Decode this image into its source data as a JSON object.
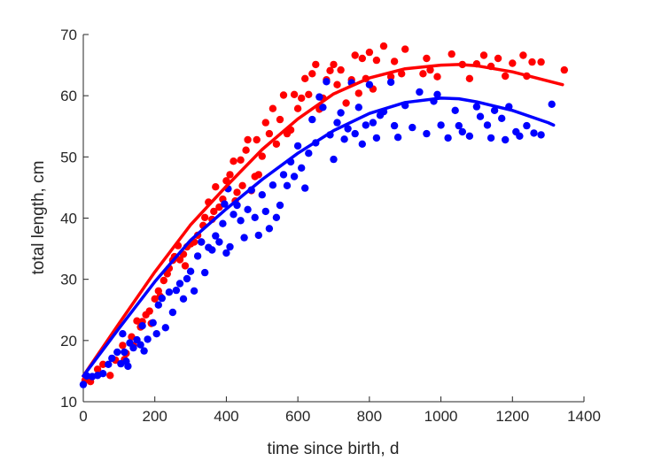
{
  "chart_data": {
    "type": "scatter",
    "title": "",
    "xlabel": "time since birth, d",
    "ylabel": "total length, cm",
    "xlim": [
      0,
      1400
    ],
    "ylim": [
      10,
      70
    ],
    "xticks": [
      0,
      200,
      400,
      600,
      800,
      1000,
      1200,
      1400
    ],
    "yticks": [
      10,
      20,
      30,
      40,
      50,
      60,
      70
    ],
    "xtick_labels": [
      "0",
      "200",
      "400",
      "600",
      "800",
      "1000",
      "1200",
      "1400"
    ],
    "ytick_labels": [
      "10",
      "20",
      "30",
      "40",
      "50",
      "60",
      "70"
    ],
    "grid": false,
    "legend": "none",
    "series": [
      {
        "color": "#ff0000",
        "points": [
          [
            5,
            13.5
          ],
          [
            20,
            13.3
          ],
          [
            40,
            15.3
          ],
          [
            55,
            16.1
          ],
          [
            75,
            14.3
          ],
          [
            90,
            16.8
          ],
          [
            110,
            19.2
          ],
          [
            115,
            16.9
          ],
          [
            120,
            17.9
          ],
          [
            135,
            20.6
          ],
          [
            140,
            19.2
          ],
          [
            150,
            23.2
          ],
          [
            160,
            22.2
          ],
          [
            165,
            23.1
          ],
          [
            175,
            24.2
          ],
          [
            185,
            24.8
          ],
          [
            190,
            22.8
          ],
          [
            200,
            26.8
          ],
          [
            210,
            28.1
          ],
          [
            215,
            27.2
          ],
          [
            225,
            29.8
          ],
          [
            235,
            30.9
          ],
          [
            240,
            31.8
          ],
          [
            250,
            33.1
          ],
          [
            255,
            33.7
          ],
          [
            265,
            35.5
          ],
          [
            270,
            33.2
          ],
          [
            280,
            34.1
          ],
          [
            285,
            32.2
          ],
          [
            290,
            35.3
          ],
          [
            300,
            35.8
          ],
          [
            310,
            36.1
          ],
          [
            320,
            37.2
          ],
          [
            330,
            36.1
          ],
          [
            335,
            38.8
          ],
          [
            340,
            40.1
          ],
          [
            350,
            42.6
          ],
          [
            360,
            39.8
          ],
          [
            365,
            41.1
          ],
          [
            370,
            45.1
          ],
          [
            380,
            41.8
          ],
          [
            390,
            43.1
          ],
          [
            400,
            46.1
          ],
          [
            410,
            47.1
          ],
          [
            420,
            49.3
          ],
          [
            425,
            42.8
          ],
          [
            430,
            44.2
          ],
          [
            440,
            49.5
          ],
          [
            445,
            45.3
          ],
          [
            455,
            51.1
          ],
          [
            460,
            52.8
          ],
          [
            470,
            44.5
          ],
          [
            480,
            46.8
          ],
          [
            485,
            52.8
          ],
          [
            490,
            47.1
          ],
          [
            500,
            50.1
          ],
          [
            510,
            55.6
          ],
          [
            520,
            53.8
          ],
          [
            530,
            57.9
          ],
          [
            540,
            52.1
          ],
          [
            550,
            56.1
          ],
          [
            560,
            60.1
          ],
          [
            570,
            53.8
          ],
          [
            580,
            54.4
          ],
          [
            590,
            60.2
          ],
          [
            600,
            57.9
          ],
          [
            610,
            59.6
          ],
          [
            620,
            62.8
          ],
          [
            630,
            60.2
          ],
          [
            640,
            63.6
          ],
          [
            650,
            65.1
          ],
          [
            660,
            57.8
          ],
          [
            670,
            59.6
          ],
          [
            680,
            62.6
          ],
          [
            690,
            64.1
          ],
          [
            700,
            65.1
          ],
          [
            710,
            61.8
          ],
          [
            720,
            64.2
          ],
          [
            735,
            58.8
          ],
          [
            750,
            62.6
          ],
          [
            760,
            66.6
          ],
          [
            770,
            60.4
          ],
          [
            780,
            66.1
          ],
          [
            790,
            62.8
          ],
          [
            800,
            67.1
          ],
          [
            810,
            61.1
          ],
          [
            820,
            65.8
          ],
          [
            840,
            68.1
          ],
          [
            860,
            63.1
          ],
          [
            870,
            65.6
          ],
          [
            890,
            63.6
          ],
          [
            900,
            67.6
          ],
          [
            950,
            63.6
          ],
          [
            960,
            66.1
          ],
          [
            970,
            64.2
          ],
          [
            990,
            63.1
          ],
          [
            1030,
            66.8
          ],
          [
            1060,
            65.1
          ],
          [
            1080,
            62.8
          ],
          [
            1100,
            65.2
          ],
          [
            1120,
            66.6
          ],
          [
            1140,
            64.8
          ],
          [
            1160,
            66.1
          ],
          [
            1180,
            63.2
          ],
          [
            1200,
            65.3
          ],
          [
            1230,
            66.6
          ],
          [
            1240,
            63.2
          ],
          [
            1255,
            65.5
          ],
          [
            1280,
            65.5
          ],
          [
            1345,
            64.2
          ]
        ]
      },
      {
        "color": "#0000ff",
        "points": [
          [
            0,
            12.8
          ],
          [
            10,
            14.2
          ],
          [
            25,
            14.1
          ],
          [
            40,
            14.3
          ],
          [
            55,
            14.6
          ],
          [
            70,
            16.1
          ],
          [
            80,
            17.1
          ],
          [
            95,
            18.1
          ],
          [
            105,
            16.2
          ],
          [
            110,
            21.1
          ],
          [
            115,
            18.1
          ],
          [
            120,
            16.6
          ],
          [
            125,
            15.8
          ],
          [
            130,
            19.6
          ],
          [
            140,
            18.8
          ],
          [
            150,
            20.1
          ],
          [
            160,
            19.3
          ],
          [
            165,
            22.4
          ],
          [
            170,
            18.3
          ],
          [
            180,
            20.2
          ],
          [
            195,
            22.9
          ],
          [
            205,
            21.1
          ],
          [
            210,
            25.8
          ],
          [
            220,
            26.9
          ],
          [
            230,
            22.1
          ],
          [
            240,
            27.9
          ],
          [
            250,
            24.6
          ],
          [
            260,
            28.2
          ],
          [
            270,
            29.3
          ],
          [
            280,
            26.8
          ],
          [
            290,
            30.1
          ],
          [
            300,
            31.3
          ],
          [
            310,
            28.1
          ],
          [
            320,
            33.8
          ],
          [
            330,
            36.1
          ],
          [
            340,
            31.1
          ],
          [
            350,
            35.2
          ],
          [
            360,
            34.8
          ],
          [
            370,
            37.1
          ],
          [
            380,
            36.1
          ],
          [
            390,
            39.1
          ],
          [
            395,
            42.3
          ],
          [
            400,
            34.3
          ],
          [
            405,
            44.8
          ],
          [
            410,
            35.3
          ],
          [
            420,
            40.6
          ],
          [
            430,
            42.1
          ],
          [
            440,
            39.6
          ],
          [
            450,
            36.8
          ],
          [
            460,
            41.4
          ],
          [
            470,
            44.6
          ],
          [
            480,
            40.1
          ],
          [
            490,
            37.2
          ],
          [
            500,
            43.8
          ],
          [
            510,
            41.1
          ],
          [
            520,
            38.3
          ],
          [
            530,
            45.4
          ],
          [
            540,
            40.1
          ],
          [
            550,
            42.1
          ],
          [
            560,
            47.1
          ],
          [
            570,
            45.3
          ],
          [
            580,
            49.2
          ],
          [
            590,
            46.8
          ],
          [
            600,
            51.8
          ],
          [
            610,
            48.2
          ],
          [
            620,
            44.9
          ],
          [
            630,
            50.6
          ],
          [
            640,
            56.1
          ],
          [
            650,
            52.3
          ],
          [
            660,
            59.8
          ],
          [
            670,
            58.1
          ],
          [
            680,
            62.3
          ],
          [
            690,
            53.6
          ],
          [
            700,
            49.6
          ],
          [
            710,
            55.6
          ],
          [
            720,
            57.2
          ],
          [
            730,
            52.9
          ],
          [
            740,
            54.6
          ],
          [
            750,
            62.1
          ],
          [
            760,
            53.8
          ],
          [
            770,
            58.1
          ],
          [
            780,
            52.1
          ],
          [
            790,
            55.2
          ],
          [
            800,
            61.8
          ],
          [
            810,
            55.6
          ],
          [
            820,
            53.1
          ],
          [
            830,
            56.8
          ],
          [
            840,
            57.4
          ],
          [
            860,
            62.2
          ],
          [
            870,
            55.1
          ],
          [
            880,
            53.2
          ],
          [
            900,
            58.4
          ],
          [
            920,
            54.8
          ],
          [
            940,
            60.6
          ],
          [
            960,
            53.8
          ],
          [
            980,
            59.1
          ],
          [
            990,
            60.2
          ],
          [
            1000,
            55.2
          ],
          [
            1020,
            53.1
          ],
          [
            1040,
            57.6
          ],
          [
            1050,
            55.1
          ],
          [
            1060,
            54.1
          ],
          [
            1080,
            53.4
          ],
          [
            1100,
            58.2
          ],
          [
            1110,
            56.6
          ],
          [
            1130,
            55.2
          ],
          [
            1140,
            53.1
          ],
          [
            1150,
            57.6
          ],
          [
            1170,
            56.3
          ],
          [
            1180,
            52.8
          ],
          [
            1190,
            58.2
          ],
          [
            1210,
            54.1
          ],
          [
            1220,
            53.4
          ],
          [
            1240,
            55.1
          ],
          [
            1260,
            53.9
          ],
          [
            1280,
            53.6
          ],
          [
            1310,
            58.6
          ]
        ]
      }
    ],
    "lines": [
      {
        "color": "#ff0000",
        "x": [
          0,
          100,
          200,
          300,
          400,
          500,
          600,
          700,
          800,
          900,
          1000,
          1050,
          1100,
          1200,
          1300,
          1340
        ],
        "y": [
          14.2,
          22.8,
          31.2,
          38.9,
          45.2,
          51.2,
          56.2,
          60.3,
          62.9,
          64.4,
          65.0,
          65.1,
          64.9,
          63.9,
          62.4,
          61.8
        ]
      },
      {
        "color": "#0000ff",
        "x": [
          0,
          100,
          200,
          300,
          400,
          500,
          600,
          700,
          800,
          900,
          1000,
          1050,
          1100,
          1200,
          1300,
          1315
        ],
        "y": [
          14.2,
          22.0,
          29.6,
          36.4,
          41.5,
          46.3,
          50.6,
          54.3,
          57.1,
          58.9,
          59.6,
          59.5,
          59.0,
          57.6,
          55.6,
          55.2
        ]
      }
    ]
  }
}
